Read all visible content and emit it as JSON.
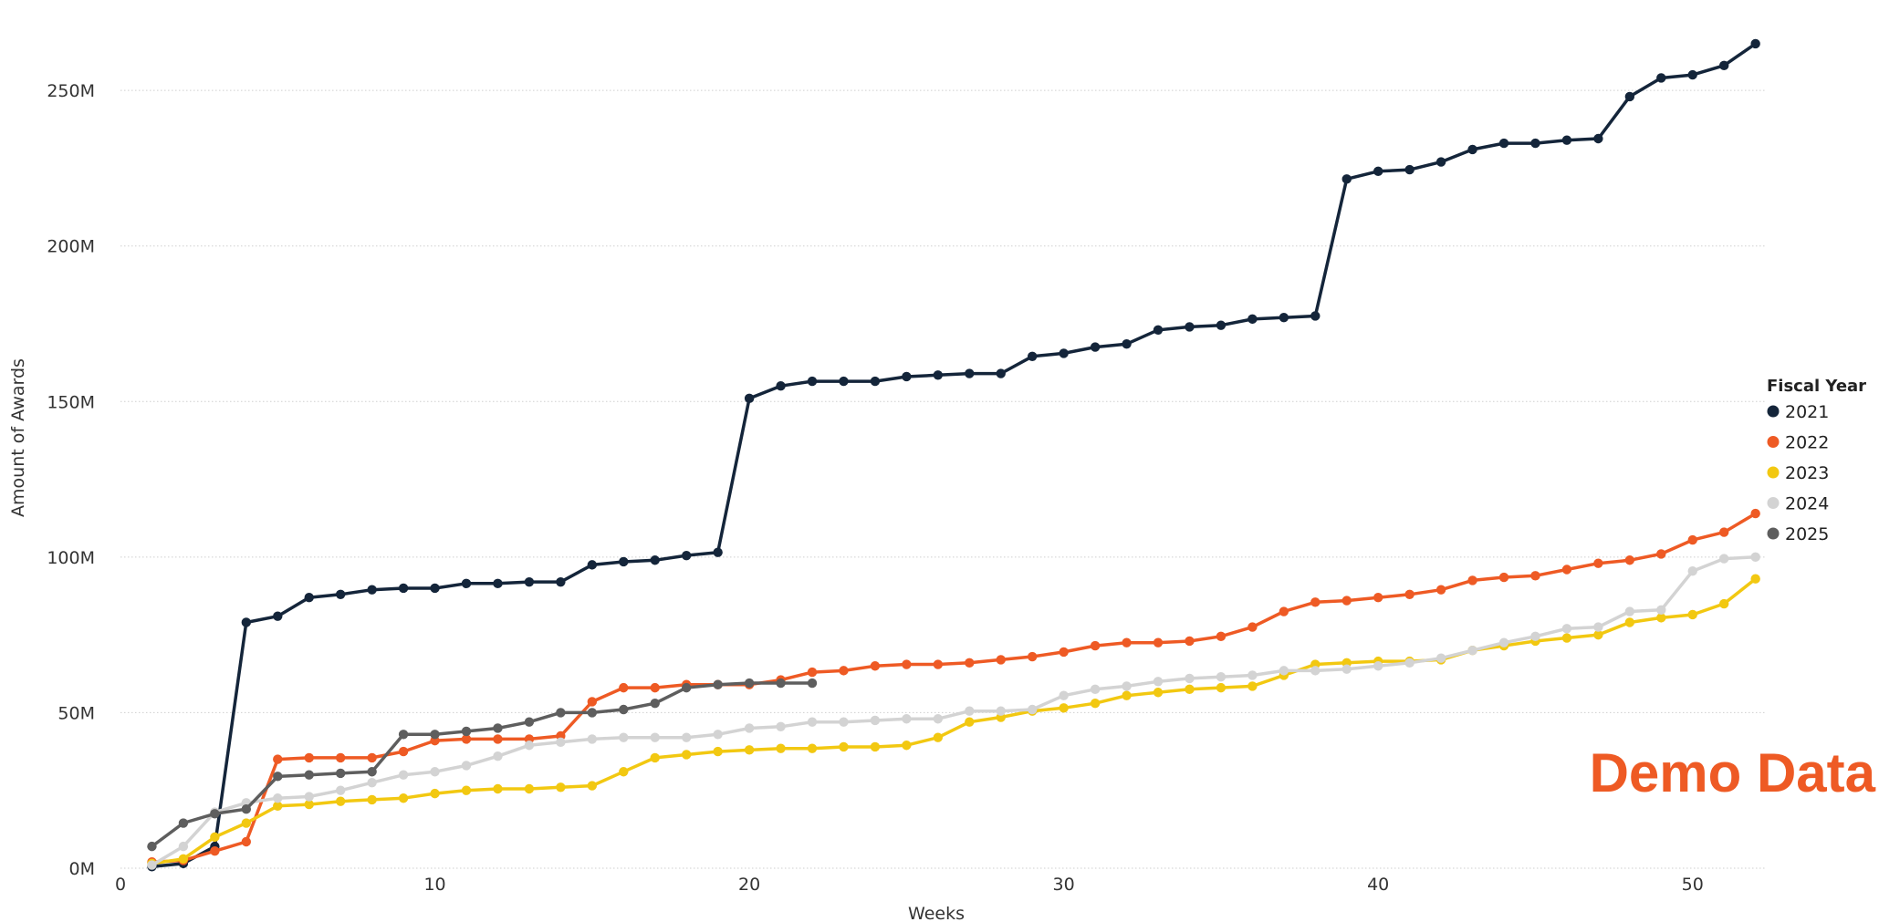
{
  "watermark": "Demo Data",
  "chart_data": {
    "type": "line",
    "xlabel": "Weeks",
    "ylabel": "Amount of Awards",
    "xlim": [
      0,
      52.3
    ],
    "ylim": [
      0,
      260
    ],
    "x_ticks": [
      0,
      10,
      20,
      30,
      40,
      50
    ],
    "x_tick_labels": [
      "0",
      "10",
      "20",
      "30",
      "40",
      "50"
    ],
    "y_ticks": [
      0,
      50,
      100,
      150,
      200,
      250
    ],
    "y_tick_labels": [
      "0M",
      "50M",
      "100M",
      "150M",
      "200M",
      "250M"
    ],
    "grid": "horizontal dotted",
    "legend_title": "Fiscal Year",
    "legend_position": "right",
    "series": [
      {
        "name": "2021",
        "color": "#14253a",
        "x": [
          1,
          2,
          3,
          4,
          5,
          6,
          7,
          8,
          9,
          10,
          11,
          12,
          13,
          14,
          15,
          16,
          17,
          18,
          19,
          20,
          21,
          22,
          23,
          24,
          25,
          26,
          27,
          28,
          29,
          30,
          31,
          32,
          33,
          34,
          35,
          36,
          37,
          38,
          39,
          40,
          41,
          42,
          43,
          44,
          45,
          46,
          47,
          48,
          49,
          50,
          51,
          52
        ],
        "values": [
          0.5,
          1.5,
          7,
          79,
          81,
          87,
          88,
          89.5,
          90,
          90,
          91.5,
          91.5,
          92,
          92,
          97.5,
          98.5,
          99,
          100.5,
          101.5,
          151,
          155,
          156.5,
          156.5,
          156.5,
          158,
          158.5,
          159,
          159,
          164.5,
          165.5,
          167.5,
          168.5,
          173,
          174,
          174.5,
          176.5,
          177,
          177.5,
          221.5,
          224,
          224.5,
          227,
          231,
          233,
          233,
          234,
          234.5,
          248,
          254,
          255,
          258,
          265
        ]
      },
      {
        "name": "2022",
        "color": "#ee5a24",
        "x": [
          1,
          2,
          3,
          4,
          5,
          6,
          7,
          8,
          9,
          10,
          11,
          12,
          13,
          14,
          15,
          16,
          17,
          18,
          19,
          20,
          21,
          22,
          23,
          24,
          25,
          26,
          27,
          28,
          29,
          30,
          31,
          32,
          33,
          34,
          35,
          36,
          37,
          38,
          39,
          40,
          41,
          42,
          43,
          44,
          45,
          46,
          47,
          48,
          49,
          50,
          51,
          52
        ],
        "values": [
          2,
          2.5,
          5.5,
          8.5,
          35,
          35.5,
          35.5,
          35.5,
          37.5,
          41,
          41.5,
          41.5,
          41.5,
          42.5,
          53.5,
          58,
          58,
          59,
          59,
          59,
          60.5,
          63,
          63.5,
          65,
          65.5,
          65.5,
          66,
          67,
          68,
          69.5,
          71.5,
          72.5,
          72.5,
          73,
          74.5,
          77.5,
          82.5,
          85.5,
          86,
          87,
          88,
          89.5,
          92.5,
          93.5,
          94,
          96,
          98,
          99,
          101,
          105.5,
          108,
          114
        ]
      },
      {
        "name": "2023",
        "color": "#f2c811",
        "x": [
          1,
          2,
          3,
          4,
          5,
          6,
          7,
          8,
          9,
          10,
          11,
          12,
          13,
          14,
          15,
          16,
          17,
          18,
          19,
          20,
          21,
          22,
          23,
          24,
          25,
          26,
          27,
          28,
          29,
          30,
          31,
          32,
          33,
          34,
          35,
          36,
          37,
          38,
          39,
          40,
          41,
          42,
          43,
          44,
          45,
          46,
          47,
          48,
          49,
          50,
          51,
          52
        ],
        "values": [
          1.5,
          3,
          10,
          14.5,
          20,
          20.5,
          21.5,
          22,
          22.5,
          24,
          25,
          25.5,
          25.5,
          26,
          26.5,
          31,
          35.5,
          36.5,
          37.5,
          38,
          38.5,
          38.5,
          39,
          39,
          39.5,
          42,
          47,
          48.5,
          50.5,
          51.5,
          53,
          55.5,
          56.5,
          57.5,
          58,
          58.5,
          62,
          65.5,
          66,
          66.5,
          66.5,
          67,
          70,
          71.5,
          73,
          74,
          75,
          79,
          80.5,
          81.5,
          85,
          93
        ]
      },
      {
        "name": "2024",
        "color": "#d3d3d3",
        "x": [
          1,
          2,
          3,
          4,
          5,
          6,
          7,
          8,
          9,
          10,
          11,
          12,
          13,
          14,
          15,
          16,
          17,
          18,
          19,
          20,
          21,
          22,
          23,
          24,
          25,
          26,
          27,
          28,
          29,
          30,
          31,
          32,
          33,
          34,
          35,
          36,
          37,
          38,
          39,
          40,
          41,
          42,
          43,
          44,
          45,
          46,
          47,
          48,
          49,
          50,
          51,
          52
        ],
        "values": [
          1,
          7,
          18,
          21,
          22.5,
          23,
          25,
          27.5,
          30,
          31,
          33,
          36,
          39.5,
          40.5,
          41.5,
          42,
          42,
          42,
          43,
          45,
          45.5,
          47,
          47,
          47.5,
          48,
          48,
          50.5,
          50.5,
          51,
          55.5,
          57.5,
          58.5,
          60,
          61,
          61.5,
          62,
          63.5,
          63.5,
          64,
          65,
          66,
          67.5,
          70,
          72.5,
          74.5,
          77,
          77.5,
          82.5,
          83,
          95.5,
          99.5,
          100
        ]
      },
      {
        "name": "2025",
        "color": "#5e5e5e",
        "x": [
          1,
          2,
          3,
          4,
          5,
          6,
          7,
          8,
          9,
          10,
          11,
          12,
          13,
          14,
          15,
          16,
          17,
          18,
          19,
          20,
          21,
          22
        ],
        "values": [
          7,
          14.5,
          17.5,
          19,
          29.5,
          30,
          30.5,
          31,
          43,
          43,
          44,
          45,
          47,
          50,
          50,
          51,
          53,
          58,
          59,
          59.5,
          59.5,
          59.5
        ]
      }
    ]
  }
}
